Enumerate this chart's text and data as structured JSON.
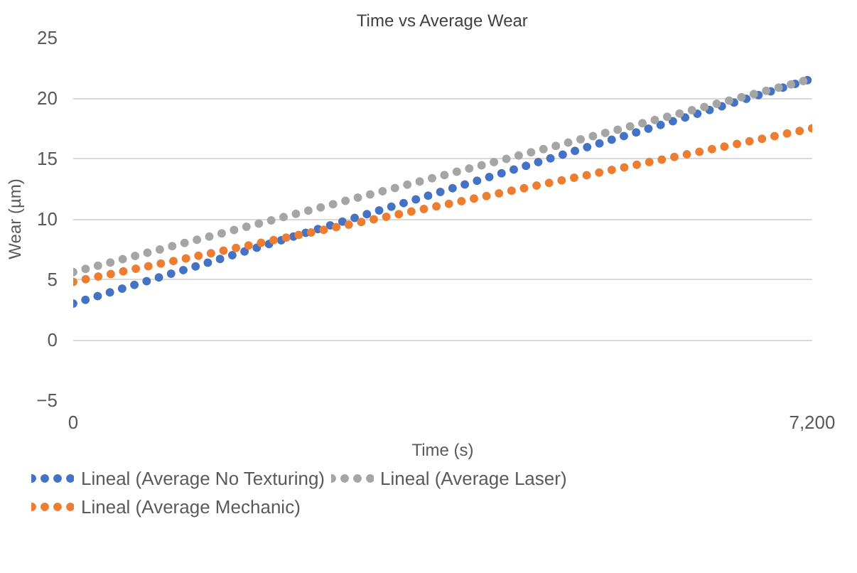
{
  "chart_data": {
    "type": "line",
    "title": "Time vs Average Wear",
    "xlabel": "Time (s)",
    "ylabel": "Wear (µm)",
    "x": [
      0,
      7200
    ],
    "series": [
      {
        "name": "Lineal (Average No Texturing)",
        "color": "#4472c4",
        "values": [
          3.0,
          21.6
        ]
      },
      {
        "name": "Lineal (Average Mechanic)",
        "color": "#ed7d31",
        "values": [
          4.8,
          17.5
        ]
      },
      {
        "name": "Lineal (Average Laser)",
        "color": "#a5a5a5",
        "values": [
          5.6,
          21.6
        ]
      }
    ],
    "xlim": [
      0,
      7200
    ],
    "xticks": [
      0,
      {
        "value": 7200,
        "label": "7,200"
      }
    ],
    "ylim": [
      -5,
      25
    ],
    "yticks": [
      -5,
      0,
      5,
      10,
      15,
      20,
      25
    ],
    "grid": "y",
    "legend": "bottom",
    "line_style": "dotted",
    "marker": "none"
  }
}
